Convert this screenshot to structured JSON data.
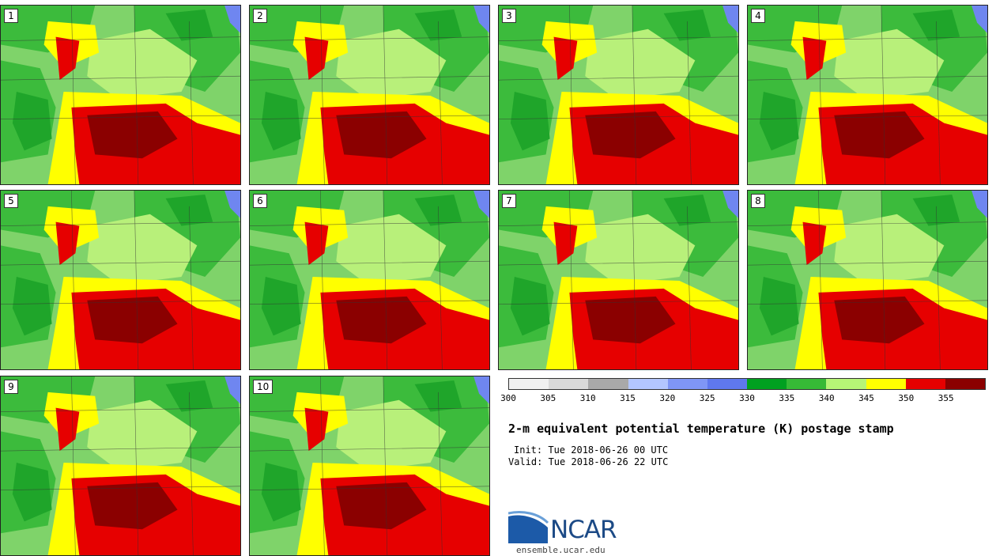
{
  "panels": [
    {
      "label": "1"
    },
    {
      "label": "2"
    },
    {
      "label": "3"
    },
    {
      "label": "4"
    },
    {
      "label": "5"
    },
    {
      "label": "6"
    },
    {
      "label": "7"
    },
    {
      "label": "8"
    },
    {
      "label": "9"
    },
    {
      "label": "10"
    }
  ],
  "colorbar": {
    "colors": [
      "#f0f0f0",
      "#d9d9d9",
      "#a9a9a9",
      "#b3c6ff",
      "#7f96f5",
      "#5f78ee",
      "#00a020",
      "#36ba36",
      "#b6f576",
      "#ffff00",
      "#e60000",
      "#8b0000"
    ],
    "ticks": [
      "300",
      "305",
      "310",
      "315",
      "320",
      "325",
      "330",
      "335",
      "340",
      "345",
      "350",
      "355"
    ]
  },
  "title": "2-m equivalent potential temperature (K) postage stamp",
  "init": "Init: Tue 2018-06-26 00 UTC",
  "valid": "Valid: Tue 2018-06-26 22 UTC",
  "logo": {
    "text": "NCAR",
    "url": "ensemble.ucar.edu"
  }
}
